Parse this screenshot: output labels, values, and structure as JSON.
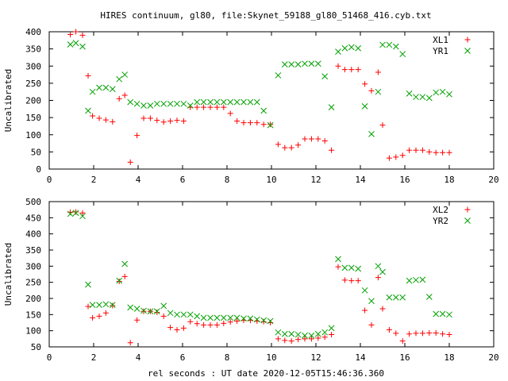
{
  "chart_data": [
    {
      "type": "scatter",
      "title": "HIRES continuum, gl80, file:Skynet_59188_gl80_51468_416.cyb.txt",
      "xlabel": "",
      "ylabel": "Uncalibrated",
      "xlim": [
        0,
        20
      ],
      "ylim": [
        0,
        400
      ],
      "xticks": [
        0,
        2,
        4,
        6,
        8,
        10,
        12,
        14,
        16,
        18,
        20
      ],
      "yticks": [
        0,
        50,
        100,
        150,
        200,
        250,
        300,
        350,
        400
      ],
      "grid": false,
      "legend_position": "top-right",
      "series": [
        {
          "name": "XL1",
          "marker": "plus",
          "color": "#ff0000",
          "points": [
            [
              0.95,
              392
            ],
            [
              1.2,
              400
            ],
            [
              1.5,
              390
            ],
            [
              1.75,
              272
            ],
            [
              1.95,
              155
            ],
            [
              2.25,
              148
            ],
            [
              2.55,
              143
            ],
            [
              2.85,
              138
            ],
            [
              3.15,
              205
            ],
            [
              3.4,
              215
            ],
            [
              3.65,
              20
            ],
            [
              3.95,
              98
            ],
            [
              4.25,
              148
            ],
            [
              4.55,
              148
            ],
            [
              4.85,
              142
            ],
            [
              5.15,
              137
            ],
            [
              5.45,
              140
            ],
            [
              5.75,
              142
            ],
            [
              6.05,
              140
            ],
            [
              6.35,
              180
            ],
            [
              6.65,
              180
            ],
            [
              6.95,
              180
            ],
            [
              7.25,
              180
            ],
            [
              7.55,
              180
            ],
            [
              7.85,
              180
            ],
            [
              8.15,
              162
            ],
            [
              8.45,
              140
            ],
            [
              8.75,
              135
            ],
            [
              9.05,
              135
            ],
            [
              9.35,
              135
            ],
            [
              9.65,
              130
            ],
            [
              9.95,
              130
            ],
            [
              10.3,
              72
            ],
            [
              10.6,
              62
            ],
            [
              10.9,
              62
            ],
            [
              11.2,
              70
            ],
            [
              11.5,
              88
            ],
            [
              11.8,
              88
            ],
            [
              12.1,
              88
            ],
            [
              12.4,
              82
            ],
            [
              12.7,
              55
            ],
            [
              13.0,
              300
            ],
            [
              13.3,
              290
            ],
            [
              13.6,
              290
            ],
            [
              13.9,
              290
            ],
            [
              14.2,
              248
            ],
            [
              14.5,
              228
            ],
            [
              14.8,
              282
            ],
            [
              15.0,
              128
            ],
            [
              15.3,
              32
            ],
            [
              15.6,
              35
            ],
            [
              15.9,
              40
            ],
            [
              16.2,
              55
            ],
            [
              16.5,
              55
            ],
            [
              16.8,
              55
            ],
            [
              17.1,
              50
            ],
            [
              17.4,
              48
            ],
            [
              17.7,
              48
            ],
            [
              18.0,
              48
            ]
          ]
        },
        {
          "name": "YR1",
          "marker": "cross",
          "color": "#00a000",
          "points": [
            [
              0.95,
              363
            ],
            [
              1.2,
              367
            ],
            [
              1.5,
              357
            ],
            [
              1.75,
              170
            ],
            [
              1.95,
              225
            ],
            [
              2.25,
              237
            ],
            [
              2.55,
              237
            ],
            [
              2.85,
              233
            ],
            [
              3.15,
              262
            ],
            [
              3.4,
              275
            ],
            [
              3.65,
              195
            ],
            [
              3.95,
              190
            ],
            [
              4.25,
              185
            ],
            [
              4.55,
              185
            ],
            [
              4.85,
              190
            ],
            [
              5.15,
              190
            ],
            [
              5.45,
              190
            ],
            [
              5.75,
              190
            ],
            [
              6.05,
              190
            ],
            [
              6.35,
              185
            ],
            [
              6.65,
              195
            ],
            [
              6.95,
              195
            ],
            [
              7.25,
              195
            ],
            [
              7.55,
              195
            ],
            [
              7.85,
              195
            ],
            [
              8.15,
              195
            ],
            [
              8.45,
              195
            ],
            [
              8.75,
              195
            ],
            [
              9.05,
              195
            ],
            [
              9.35,
              195
            ],
            [
              9.65,
              170
            ],
            [
              9.95,
              128
            ],
            [
              10.3,
              273
            ],
            [
              10.6,
              305
            ],
            [
              10.9,
              305
            ],
            [
              11.2,
              305
            ],
            [
              11.5,
              307
            ],
            [
              11.8,
              307
            ],
            [
              12.1,
              307
            ],
            [
              12.4,
              270
            ],
            [
              12.7,
              180
            ],
            [
              13.0,
              342
            ],
            [
              13.3,
              352
            ],
            [
              13.6,
              355
            ],
            [
              13.9,
              352
            ],
            [
              14.2,
              183
            ],
            [
              14.5,
              102
            ],
            [
              14.8,
              225
            ],
            [
              15.0,
              362
            ],
            [
              15.3,
              362
            ],
            [
              15.6,
              357
            ],
            [
              15.9,
              335
            ],
            [
              16.2,
              220
            ],
            [
              16.5,
              210
            ],
            [
              16.8,
              210
            ],
            [
              17.1,
              207
            ],
            [
              17.4,
              223
            ],
            [
              17.7,
              225
            ],
            [
              18.0,
              218
            ]
          ]
        }
      ]
    },
    {
      "type": "scatter",
      "title": "",
      "xlabel": "rel seconds : UT date 2020-12-05T15:46:36.360",
      "ylabel": "Uncalibrated",
      "xlim": [
        0,
        20
      ],
      "ylim": [
        50,
        500
      ],
      "xticks": [
        0,
        2,
        4,
        6,
        8,
        10,
        12,
        14,
        16,
        18,
        20
      ],
      "yticks": [
        50,
        100,
        150,
        200,
        250,
        300,
        350,
        400,
        450,
        500
      ],
      "grid": false,
      "legend_position": "top-right",
      "series": [
        {
          "name": "XL2",
          "marker": "plus",
          "color": "#ff0000",
          "points": [
            [
              0.95,
              467
            ],
            [
              1.2,
              468
            ],
            [
              1.5,
              465
            ],
            [
              1.75,
              175
            ],
            [
              1.95,
              140
            ],
            [
              2.25,
              145
            ],
            [
              2.55,
              155
            ],
            [
              2.85,
              178
            ],
            [
              3.15,
              253
            ],
            [
              3.4,
              268
            ],
            [
              3.65,
              63
            ],
            [
              3.95,
              133
            ],
            [
              4.25,
              160
            ],
            [
              4.55,
              160
            ],
            [
              4.85,
              157
            ],
            [
              5.15,
              145
            ],
            [
              5.45,
              110
            ],
            [
              5.75,
              103
            ],
            [
              6.05,
              108
            ],
            [
              6.35,
              128
            ],
            [
              6.65,
              122
            ],
            [
              6.95,
              118
            ],
            [
              7.25,
              118
            ],
            [
              7.55,
              118
            ],
            [
              7.85,
              123
            ],
            [
              8.15,
              127
            ],
            [
              8.45,
              130
            ],
            [
              8.75,
              132
            ],
            [
              9.05,
              132
            ],
            [
              9.35,
              130
            ],
            [
              9.65,
              128
            ],
            [
              9.95,
              125
            ],
            [
              10.3,
              75
            ],
            [
              10.6,
              70
            ],
            [
              10.9,
              68
            ],
            [
              11.2,
              73
            ],
            [
              11.5,
              75
            ],
            [
              11.8,
              75
            ],
            [
              12.1,
              77
            ],
            [
              12.4,
              80
            ],
            [
              12.7,
              88
            ],
            [
              13.0,
              298
            ],
            [
              13.3,
              257
            ],
            [
              13.6,
              255
            ],
            [
              13.9,
              255
            ],
            [
              14.2,
              163
            ],
            [
              14.5,
              118
            ],
            [
              14.8,
              265
            ],
            [
              15.0,
              168
            ],
            [
              15.3,
              103
            ],
            [
              15.6,
              92
            ],
            [
              15.9,
              68
            ],
            [
              16.2,
              90
            ],
            [
              16.5,
              92
            ],
            [
              16.8,
              92
            ],
            [
              17.1,
              93
            ],
            [
              17.4,
              93
            ],
            [
              17.7,
              90
            ],
            [
              18.0,
              88
            ]
          ]
        },
        {
          "name": "YR2",
          "marker": "cross",
          "color": "#00a000",
          "points": [
            [
              0.95,
              462
            ],
            [
              1.2,
              465
            ],
            [
              1.5,
              455
            ],
            [
              1.75,
              243
            ],
            [
              1.95,
              180
            ],
            [
              2.25,
              180
            ],
            [
              2.55,
              182
            ],
            [
              2.85,
              180
            ],
            [
              3.15,
              255
            ],
            [
              3.4,
              307
            ],
            [
              3.65,
              172
            ],
            [
              3.95,
              168
            ],
            [
              4.25,
              162
            ],
            [
              4.55,
              160
            ],
            [
              4.85,
              160
            ],
            [
              5.15,
              177
            ],
            [
              5.45,
              155
            ],
            [
              5.75,
              150
            ],
            [
              6.05,
              150
            ],
            [
              6.35,
              150
            ],
            [
              6.65,
              145
            ],
            [
              6.95,
              140
            ],
            [
              7.25,
              140
            ],
            [
              7.55,
              140
            ],
            [
              7.85,
              140
            ],
            [
              8.15,
              140
            ],
            [
              8.45,
              140
            ],
            [
              8.75,
              138
            ],
            [
              9.05,
              138
            ],
            [
              9.35,
              135
            ],
            [
              9.65,
              132
            ],
            [
              9.95,
              130
            ],
            [
              10.3,
              95
            ],
            [
              10.6,
              90
            ],
            [
              10.9,
              90
            ],
            [
              11.2,
              88
            ],
            [
              11.5,
              85
            ],
            [
              11.8,
              85
            ],
            [
              12.1,
              90
            ],
            [
              12.4,
              95
            ],
            [
              12.7,
              108
            ],
            [
              13.0,
              322
            ],
            [
              13.3,
              295
            ],
            [
              13.6,
              295
            ],
            [
              13.9,
              292
            ],
            [
              14.2,
              225
            ],
            [
              14.5,
              192
            ],
            [
              14.8,
              300
            ],
            [
              15.0,
              282
            ],
            [
              15.3,
              203
            ],
            [
              15.6,
              203
            ],
            [
              15.9,
              203
            ],
            [
              16.2,
              255
            ],
            [
              16.5,
              257
            ],
            [
              16.8,
              258
            ],
            [
              17.1,
              205
            ],
            [
              17.4,
              152
            ],
            [
              17.7,
              152
            ],
            [
              18.0,
              150
            ]
          ]
        }
      ]
    }
  ]
}
